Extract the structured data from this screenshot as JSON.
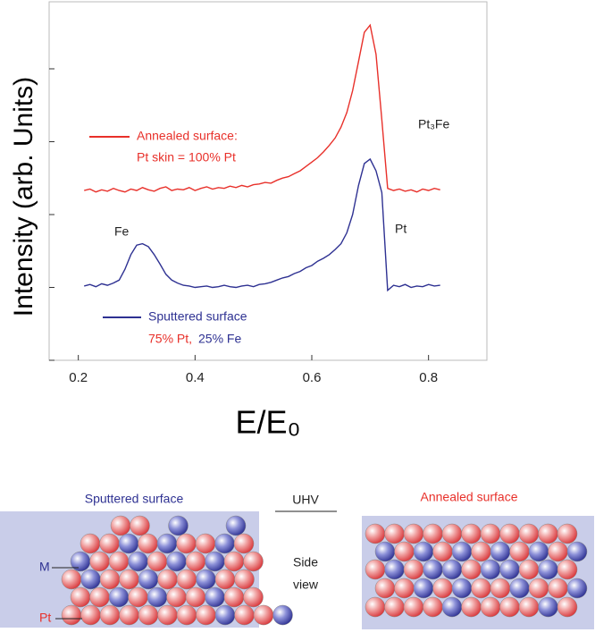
{
  "chart_data": {
    "type": "line",
    "ylabel": "Intensity (arb. Units)",
    "xlabel": "E/E₀",
    "x": [
      0.21,
      0.22,
      0.23,
      0.24,
      0.25,
      0.26,
      0.27,
      0.28,
      0.29,
      0.3,
      0.31,
      0.32,
      0.33,
      0.34,
      0.35,
      0.36,
      0.37,
      0.38,
      0.39,
      0.4,
      0.41,
      0.42,
      0.43,
      0.44,
      0.45,
      0.46,
      0.47,
      0.48,
      0.49,
      0.5,
      0.51,
      0.52,
      0.53,
      0.54,
      0.55,
      0.56,
      0.57,
      0.58,
      0.59,
      0.6,
      0.61,
      0.62,
      0.63,
      0.64,
      0.65,
      0.66,
      0.67,
      0.68,
      0.69,
      0.7,
      0.71,
      0.72,
      0.73,
      0.74,
      0.75,
      0.76,
      0.77,
      0.78,
      0.79,
      0.8,
      0.81,
      0.82
    ],
    "series": [
      {
        "name": "Annealed surface:",
        "color": "#e8302a",
        "values": [
          2.33,
          2.35,
          2.31,
          2.34,
          2.32,
          2.36,
          2.33,
          2.31,
          2.35,
          2.33,
          2.37,
          2.34,
          2.32,
          2.36,
          2.38,
          2.33,
          2.35,
          2.34,
          2.37,
          2.33,
          2.36,
          2.38,
          2.35,
          2.37,
          2.36,
          2.39,
          2.37,
          2.4,
          2.38,
          2.41,
          2.42,
          2.44,
          2.43,
          2.47,
          2.5,
          2.52,
          2.56,
          2.6,
          2.66,
          2.72,
          2.78,
          2.86,
          2.95,
          3.05,
          3.2,
          3.4,
          3.7,
          4.1,
          4.5,
          4.6,
          4.2,
          3.3,
          2.36,
          2.33,
          2.35,
          2.32,
          2.34,
          2.31,
          2.35,
          2.33,
          2.36,
          2.34
        ]
      },
      {
        "name": "Sputtered surface",
        "color": "#2e3192",
        "values": [
          1.02,
          1.04,
          1.01,
          1.05,
          1.03,
          1.06,
          1.1,
          1.25,
          1.45,
          1.58,
          1.6,
          1.56,
          1.45,
          1.32,
          1.18,
          1.1,
          1.06,
          1.03,
          1.02,
          1.0,
          1.01,
          1.02,
          1.0,
          1.01,
          1.03,
          1.01,
          1.0,
          1.02,
          1.03,
          1.01,
          1.04,
          1.05,
          1.07,
          1.1,
          1.13,
          1.15,
          1.19,
          1.22,
          1.27,
          1.3,
          1.36,
          1.4,
          1.45,
          1.52,
          1.6,
          1.75,
          2.0,
          2.4,
          2.7,
          2.76,
          2.6,
          2.3,
          0.96,
          1.03,
          1.01,
          1.04,
          1.0,
          1.02,
          1.01,
          1.04,
          1.02,
          1.03
        ]
      }
    ],
    "xlim": [
      0.15,
      0.9
    ],
    "xticks": [
      0.2,
      0.4,
      0.6,
      0.8
    ],
    "ylim": [
      0,
      4.92
    ],
    "yticks": [
      0,
      1,
      2,
      3,
      4
    ],
    "annotations": [
      "Pt skin = 100% Pt",
      "Pt₃Fe",
      "Fe",
      "Pt",
      "75% Pt,",
      "25% Fe"
    ]
  },
  "diagram": {
    "left_title": "Sputtered surface",
    "center_title": "UHV",
    "center_lines": [
      "Side",
      "view"
    ],
    "right_title": "Annealed surface",
    "labels": [
      "M",
      "Pt"
    ]
  }
}
